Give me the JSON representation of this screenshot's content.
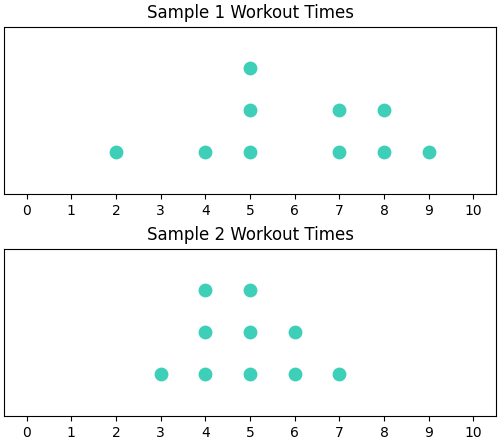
{
  "chart_data": [
    {
      "type": "dot",
      "title": "Sample 1 Workout Times",
      "x": [
        2,
        4,
        5,
        7,
        8,
        9
      ],
      "values": [
        1,
        1,
        3,
        2,
        2,
        1
      ],
      "color": "#3ECFB8",
      "xlim": [
        -0.5,
        10.5
      ],
      "xticks": [
        0,
        1,
        2,
        3,
        4,
        5,
        6,
        7,
        8,
        9,
        10
      ],
      "ylim": [
        0,
        4
      ],
      "tick_labels": "x"
    },
    {
      "type": "dot",
      "title": "Sample 2 Workout Times",
      "x": [
        3,
        4,
        5,
        6,
        7
      ],
      "values": [
        1,
        3,
        3,
        2,
        1
      ],
      "color": "#3ECFB8",
      "xlim": [
        -0.5,
        10.5
      ],
      "xticks": [
        0,
        1,
        2,
        3,
        4,
        5,
        6,
        7,
        8,
        9,
        10
      ],
      "ylim": [
        0,
        4
      ],
      "tick_labels": "x"
    }
  ]
}
